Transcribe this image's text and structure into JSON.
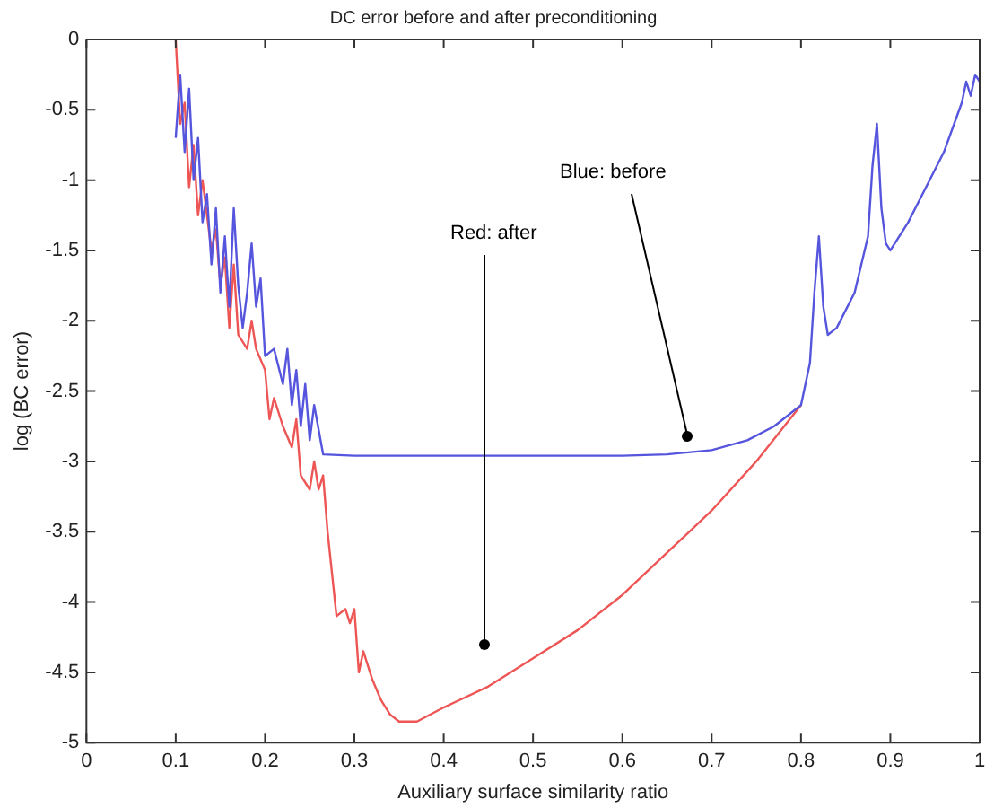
{
  "chart_data": {
    "type": "line",
    "title": "DC error before and after preconditioning",
    "xlabel": "Auxiliary surface similarity ratio",
    "ylabel": "log (BC error)",
    "xlim": [
      0,
      1
    ],
    "xticks": [
      0,
      0.1,
      0.2,
      0.3,
      0.4,
      0.5,
      0.6,
      0.7,
      0.8,
      0.9,
      1
    ],
    "ylim": [
      -5,
      0
    ],
    "yticks": [
      -5,
      -4.5,
      -4,
      -3.5,
      -3,
      -2.5,
      -2,
      -1.5,
      -1,
      -0.5,
      0
    ],
    "grid": false,
    "legend": false,
    "marker": "none",
    "line_style": "solid",
    "annotations": [
      "Blue: before",
      "Red: after"
    ],
    "series": [
      {
        "color": "#5555dd",
        "x": [
          0.1,
          0.105,
          0.11,
          0.115,
          0.12,
          0.125,
          0.13,
          0.135,
          0.14,
          0.145,
          0.15,
          0.155,
          0.16,
          0.165,
          0.17,
          0.175,
          0.18,
          0.185,
          0.19,
          0.195,
          0.2,
          0.21,
          0.22,
          0.225,
          0.23,
          0.235,
          0.24,
          0.245,
          0.25,
          0.255,
          0.265,
          0.3,
          0.4,
          0.5,
          0.6,
          0.65,
          0.7,
          0.74,
          0.77,
          0.8,
          0.81,
          0.815,
          0.82,
          0.825,
          0.83,
          0.84,
          0.86,
          0.875,
          0.88,
          0.885,
          0.89,
          0.895,
          0.9,
          0.92,
          0.94,
          0.96,
          0.98,
          0.985,
          0.99,
          0.995,
          1.0
        ],
        "values": [
          -0.7,
          -0.25,
          -0.8,
          -0.35,
          -1.0,
          -0.7,
          -1.3,
          -1.1,
          -1.6,
          -1.2,
          -1.8,
          -1.4,
          -1.9,
          -1.2,
          -1.75,
          -2.05,
          -1.8,
          -1.45,
          -1.9,
          -1.7,
          -2.25,
          -2.2,
          -2.45,
          -2.2,
          -2.6,
          -2.35,
          -2.75,
          -2.45,
          -2.85,
          -2.6,
          -2.95,
          -2.96,
          -2.96,
          -2.96,
          -2.96,
          -2.95,
          -2.92,
          -2.85,
          -2.75,
          -2.6,
          -2.3,
          -1.8,
          -1.4,
          -1.9,
          -2.1,
          -2.05,
          -1.8,
          -1.4,
          -0.9,
          -0.6,
          -1.2,
          -1.45,
          -1.5,
          -1.3,
          -1.05,
          -0.8,
          -0.45,
          -0.3,
          -0.4,
          -0.25,
          -0.3
        ]
      },
      {
        "color": "#ee5555",
        "x": [
          0.1,
          0.105,
          0.11,
          0.115,
          0.12,
          0.125,
          0.13,
          0.14,
          0.145,
          0.15,
          0.155,
          0.16,
          0.165,
          0.17,
          0.18,
          0.185,
          0.19,
          0.2,
          0.205,
          0.21,
          0.22,
          0.23,
          0.235,
          0.24,
          0.25,
          0.255,
          0.26,
          0.265,
          0.27,
          0.28,
          0.29,
          0.295,
          0.3,
          0.305,
          0.31,
          0.32,
          0.33,
          0.34,
          0.35,
          0.37,
          0.4,
          0.45,
          0.5,
          0.55,
          0.6,
          0.65,
          0.7,
          0.75,
          0.8
        ],
        "values": [
          0,
          -0.6,
          -0.45,
          -1.05,
          -0.75,
          -1.25,
          -1.0,
          -1.5,
          -1.35,
          -1.75,
          -1.55,
          -2.05,
          -1.6,
          -2.1,
          -2.2,
          -2.0,
          -2.2,
          -2.35,
          -2.7,
          -2.55,
          -2.75,
          -2.9,
          -2.7,
          -3.1,
          -3.2,
          -3.0,
          -3.2,
          -3.1,
          -3.5,
          -4.1,
          -4.05,
          -4.15,
          -4.05,
          -4.5,
          -4.35,
          -4.55,
          -4.7,
          -4.8,
          -4.85,
          -4.85,
          -4.75,
          -4.6,
          -4.4,
          -4.2,
          -3.95,
          -3.65,
          -3.35,
          -3.0,
          -2.6
        ]
      }
    ]
  }
}
